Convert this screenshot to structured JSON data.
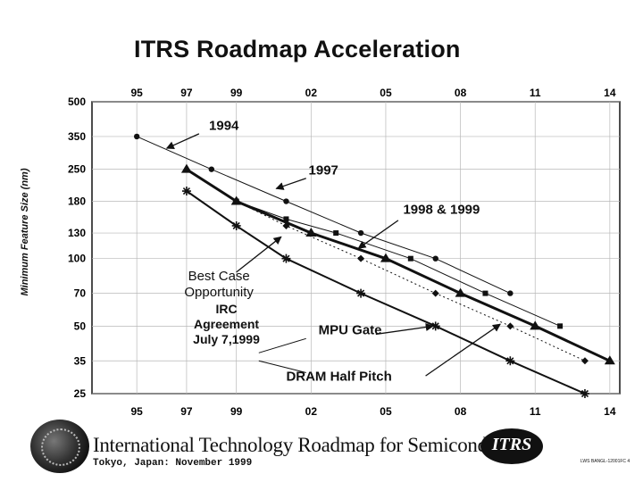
{
  "title": "ITRS Roadmap Acceleration",
  "footer": {
    "title": "International Technology Roadmap for Semiconductors",
    "subtitle": "Tokyo, Japan: November 1999",
    "logo_text": "ITRS",
    "doc_id": "LWS BANGL-12001FC 4"
  },
  "chart_data": {
    "type": "line",
    "ylabel": "Minimum Feature Size (nm)",
    "xlim": [
      1993.2,
      2014.4
    ],
    "y_scale": "log",
    "ylim": [
      25,
      500
    ],
    "x_ticks": [
      {
        "value": 1995,
        "label": "95"
      },
      {
        "value": 1997,
        "label": "97"
      },
      {
        "value": 1999,
        "label": "99"
      },
      {
        "value": 2002,
        "label": "02"
      },
      {
        "value": 2005,
        "label": "05"
      },
      {
        "value": 2008,
        "label": "08"
      },
      {
        "value": 2011,
        "label": "11"
      },
      {
        "value": 2014,
        "label": "14"
      }
    ],
    "y_ticks": [
      500,
      350,
      250,
      180,
      130,
      100,
      70,
      50,
      35,
      25
    ],
    "grid": true,
    "series": [
      {
        "name": "1994",
        "marker": "circle",
        "stroke": "#111111",
        "width": 1,
        "points": [
          [
            1995,
            350
          ],
          [
            1998,
            250
          ],
          [
            2001,
            180
          ],
          [
            2004,
            130
          ],
          [
            2007,
            100
          ],
          [
            2010,
            70
          ]
        ]
      },
      {
        "name": "1997",
        "marker": "square",
        "stroke": "#111111",
        "width": 1,
        "points": [
          [
            1999,
            180
          ],
          [
            2001,
            150
          ],
          [
            2003,
            130
          ],
          [
            2006,
            100
          ],
          [
            2009,
            70
          ],
          [
            2012,
            50
          ]
        ]
      },
      {
        "name": "",
        "marker": "diamond",
        "stroke": "#111111",
        "width": 1,
        "dash": "2,3",
        "points": [
          [
            1999,
            180
          ],
          [
            2001,
            140
          ],
          [
            2004,
            100
          ],
          [
            2007,
            70
          ],
          [
            2010,
            50
          ],
          [
            2013,
            35
          ]
        ]
      },
      {
        "name": "1998 & 1999",
        "marker": "triangle",
        "stroke": "#111111",
        "width": 3,
        "points": [
          [
            1997,
            250
          ],
          [
            1999,
            180
          ],
          [
            2002,
            130
          ],
          [
            2005,
            100
          ],
          [
            2008,
            70
          ],
          [
            2011,
            50
          ],
          [
            2014,
            35
          ]
        ]
      },
      {
        "name": "MPU Gate",
        "marker": "star",
        "stroke": "#111111",
        "width": 2,
        "points": [
          [
            1997,
            200
          ],
          [
            1999,
            140
          ],
          [
            2001,
            100
          ],
          [
            2004,
            70
          ],
          [
            2007,
            50
          ],
          [
            2010,
            35
          ],
          [
            2013,
            25
          ]
        ]
      }
    ],
    "annotations": [
      {
        "key": "a1994",
        "text": "1994",
        "size": 15,
        "anchor": "start",
        "tx": 1997.9,
        "ty": 375,
        "ax": 1997.5,
        "ay": 360,
        "hx": 1996.2,
        "hy": 310
      },
      {
        "key": "a1997",
        "text": "1997",
        "size": 15,
        "anchor": "start",
        "tx": 2001.9,
        "ty": 237,
        "ax": 2001.8,
        "ay": 228,
        "hx": 2000.6,
        "hy": 205
      },
      {
        "key": "a9899",
        "text": "1998 & 1999",
        "size": 15,
        "anchor": "start",
        "tx": 2005.7,
        "ty": 158,
        "ax": 2005.5,
        "ay": 148,
        "hx": 2003.9,
        "hy": 111
      },
      {
        "key": "best",
        "text": "Best Case\nOpportunity",
        "size": 15,
        "anchor": "middle",
        "tx": 1998.3,
        "ty": 80,
        "ax": 1999.0,
        "ay": 87,
        "hx": 2000.8,
        "hy": 125
      },
      {
        "key": "irc",
        "text": "IRC\nAgreement\nJuly 7,1999",
        "size": 14,
        "anchor": "middle",
        "tx": 1998.6,
        "ty": 57,
        "ax": null
      },
      {
        "key": "mpu",
        "text": "MPU Gate",
        "size": 15,
        "anchor": "start",
        "tx": 2002.3,
        "ty": 46,
        "ax": 2004.6,
        "ay": 46,
        "hx": 2006.9,
        "hy": 50
      },
      {
        "key": "dram",
        "text": "DRAM Half Pitch",
        "size": 15,
        "anchor": "start",
        "tx": 2001.0,
        "ty": 28.5,
        "ax": 2006.6,
        "ay": 30,
        "hx": 2009.6,
        "hy": 51
      }
    ],
    "irc_lines": [
      {
        "x1": 1999.9,
        "y1": 38,
        "x2": 2001.8,
        "y2": 44
      },
      {
        "x1": 1999.9,
        "y1": 35,
        "x2": 2001.8,
        "y2": 31
      }
    ]
  }
}
